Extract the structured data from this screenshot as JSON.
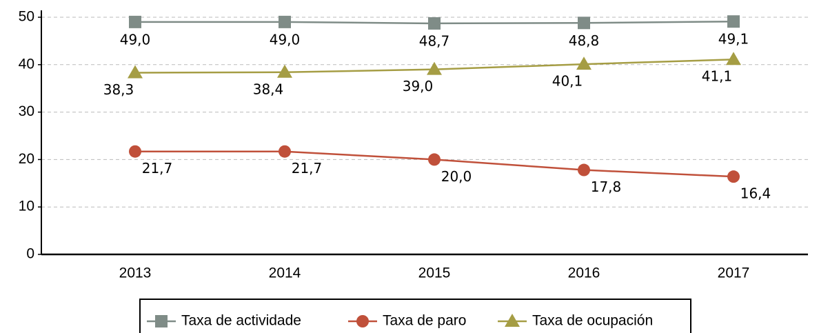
{
  "chart_data": {
    "type": "line",
    "categories": [
      "2013",
      "2014",
      "2015",
      "2016",
      "2017"
    ],
    "series": [
      {
        "name": "Taxa de actividade",
        "color": "#7f8c87",
        "marker": "square",
        "values": [
          49.0,
          49.0,
          48.7,
          48.8,
          49.1
        ],
        "value_labels": [
          "49,0",
          "49,0",
          "48,7",
          "48,8",
          "49,1"
        ]
      },
      {
        "name": "Taxa de paro",
        "color": "#c0503a",
        "marker": "circle",
        "values": [
          21.7,
          21.7,
          20.0,
          17.8,
          16.4
        ],
        "value_labels": [
          "21,7",
          "21,7",
          "20,0",
          "17,8",
          "16,4"
        ]
      },
      {
        "name": "Taxa de ocupación",
        "color": "#a59d44",
        "marker": "triangle",
        "values": [
          38.3,
          38.4,
          39.0,
          40.1,
          41.1
        ],
        "value_labels": [
          "38,3",
          "38,4",
          "39,0",
          "40,1",
          "41,1"
        ]
      }
    ],
    "ylim": [
      0,
      50
    ],
    "yticks": [
      0,
      10,
      20,
      30,
      40,
      50
    ],
    "grid": true,
    "legend": "bottom"
  }
}
